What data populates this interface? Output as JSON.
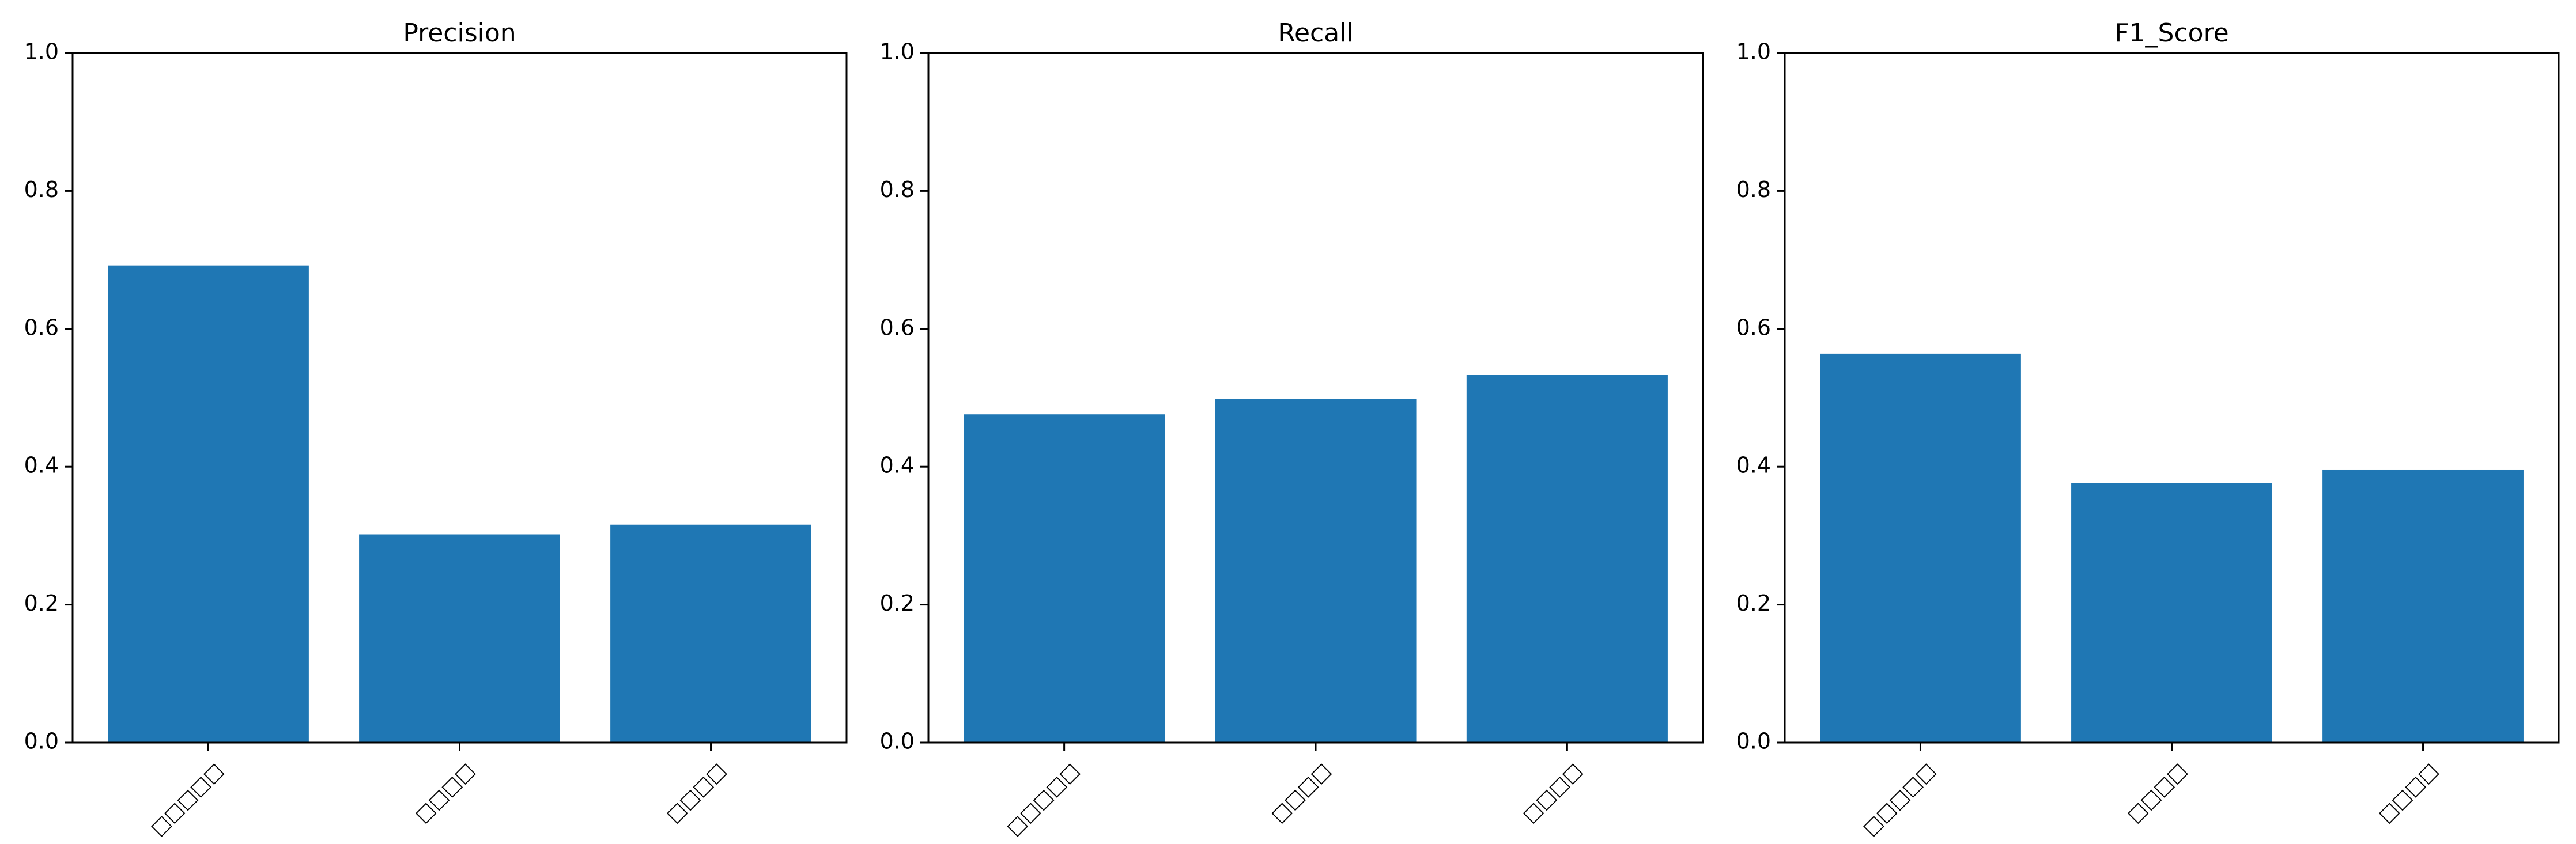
{
  "chart_data": [
    {
      "type": "bar",
      "title": "Precision",
      "xlabel": "",
      "ylabel": "",
      "categories": [
        "□□□□□",
        "□□□□",
        "□□□□"
      ],
      "values": [
        0.692,
        0.302,
        0.316
      ],
      "ylim": [
        0,
        1.0
      ],
      "yticks": [
        "0.0",
        "0.2",
        "0.4",
        "0.6",
        "0.8",
        "1.0"
      ],
      "grid": false,
      "legend": "none",
      "bar_color": "#1f77b4"
    },
    {
      "type": "bar",
      "title": "Recall",
      "xlabel": "",
      "ylabel": "",
      "categories": [
        "□□□□□",
        "□□□□",
        "□□□□"
      ],
      "values": [
        0.476,
        0.498,
        0.533
      ],
      "ylim": [
        0,
        1.0
      ],
      "yticks": [
        "0.0",
        "0.2",
        "0.4",
        "0.6",
        "0.8",
        "1.0"
      ],
      "grid": false,
      "legend": "none",
      "bar_color": "#1f77b4"
    },
    {
      "type": "bar",
      "title": "F1_Score",
      "xlabel": "",
      "ylabel": "",
      "categories": [
        "□□□□□",
        "□□□□",
        "□□□□"
      ],
      "values": [
        0.564,
        0.376,
        0.396
      ],
      "ylim": [
        0,
        1.0
      ],
      "yticks": [
        "0.0",
        "0.2",
        "0.4",
        "0.6",
        "0.8",
        "1.0"
      ],
      "grid": false,
      "legend": "none",
      "bar_color": "#1f77b4"
    }
  ]
}
